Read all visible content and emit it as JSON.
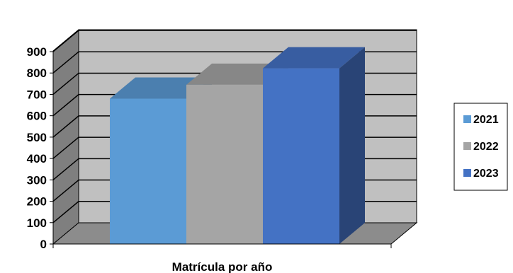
{
  "chart_data": {
    "type": "bar",
    "style": "3d-clustered-column",
    "categories": [
      "Matrícula por año"
    ],
    "xlabel": "",
    "ylabel": "",
    "ylim": [
      0,
      900
    ],
    "y_ticks": [
      "0",
      "100",
      "200",
      "300",
      "400",
      "500",
      "600",
      "700",
      "800",
      "900"
    ],
    "grid": true,
    "legend": "right",
    "series": [
      {
        "name": "2021",
        "values": [
          680
        ],
        "color": "#5B9BD5"
      },
      {
        "name": "2022",
        "values": [
          745
        ],
        "color": "#A5A5A5"
      },
      {
        "name": "2023",
        "values": [
          822
        ],
        "color": "#4472C4"
      }
    ]
  }
}
